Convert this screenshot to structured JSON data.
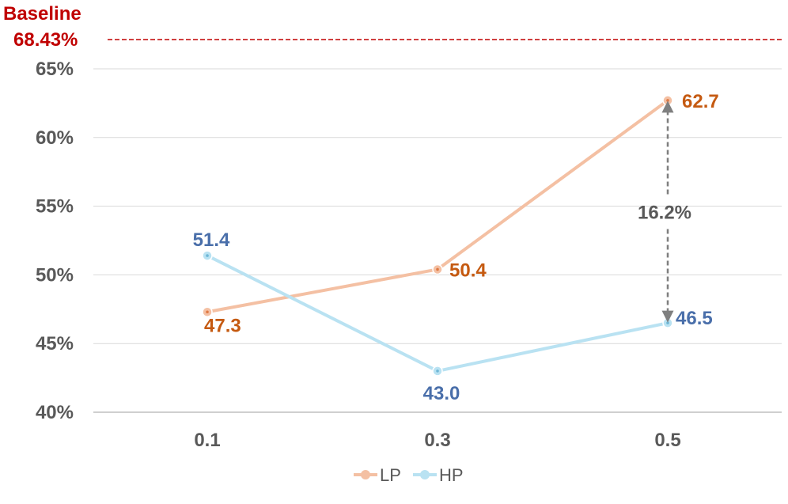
{
  "chart_data": {
    "type": "line",
    "categories": [
      "0.1",
      "0.3",
      "0.5"
    ],
    "series": [
      {
        "name": "LP",
        "values": [
          47.3,
          50.4,
          62.7
        ],
        "labels": [
          "47.3",
          "50.4",
          "62.7"
        ],
        "color": "#F4C0A3",
        "label_color": "#C55A11"
      },
      {
        "name": "HP",
        "values": [
          51.4,
          43.0,
          46.5
        ],
        "labels": [
          "51.4",
          "43.0",
          "46.5"
        ],
        "color": "#B9E2F2",
        "label_color": "#4A6FAA"
      }
    ],
    "ylim": [
      40,
      65
    ],
    "yticks": [
      40,
      45,
      50,
      55,
      60,
      65
    ],
    "ytick_labels": [
      "40%",
      "45%",
      "50%",
      "55%",
      "60%",
      "65%"
    ],
    "baseline": {
      "label": "Baseline",
      "value_label": "68.43%",
      "value": 68.43,
      "color": "#C00000"
    },
    "annotation": {
      "text": "16.2%",
      "category": "0.5",
      "from": 62.7,
      "to": 46.5,
      "color": "#7F7F7F"
    },
    "grid": true,
    "legend_position": "bottom"
  }
}
